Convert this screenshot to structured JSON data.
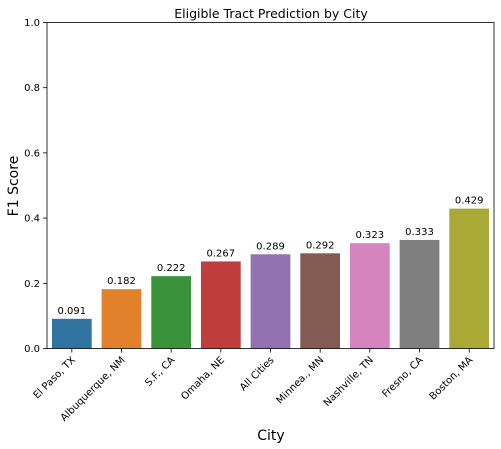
{
  "chart_data": {
    "type": "bar",
    "title": "Eligible Tract Prediction by City",
    "xlabel": "City",
    "ylabel": "F1 Score",
    "ylim": [
      0,
      1.0
    ],
    "yticks": [
      "0.0",
      "0.2",
      "0.4",
      "0.6",
      "0.8",
      "1.0"
    ],
    "grid": false,
    "categories": [
      "El Paso, TX",
      "Albuquerque, NM",
      "S.F., CA",
      "Omaha, NE",
      "All Cities",
      "Minnea., MN",
      "Nashville, TN",
      "Fresno, CA",
      "Boston, MA"
    ],
    "values": [
      0.091,
      0.182,
      0.222,
      0.267,
      0.289,
      0.292,
      0.323,
      0.333,
      0.429
    ],
    "value_labels": [
      "0.091",
      "0.182",
      "0.222",
      "0.267",
      "0.289",
      "0.292",
      "0.323",
      "0.333",
      "0.429"
    ],
    "colors": [
      "#3274a1",
      "#e1812c",
      "#3a923a",
      "#c03d3e",
      "#9372b2",
      "#845b53",
      "#d684bd",
      "#7f7f7f",
      "#a9aa35"
    ]
  }
}
